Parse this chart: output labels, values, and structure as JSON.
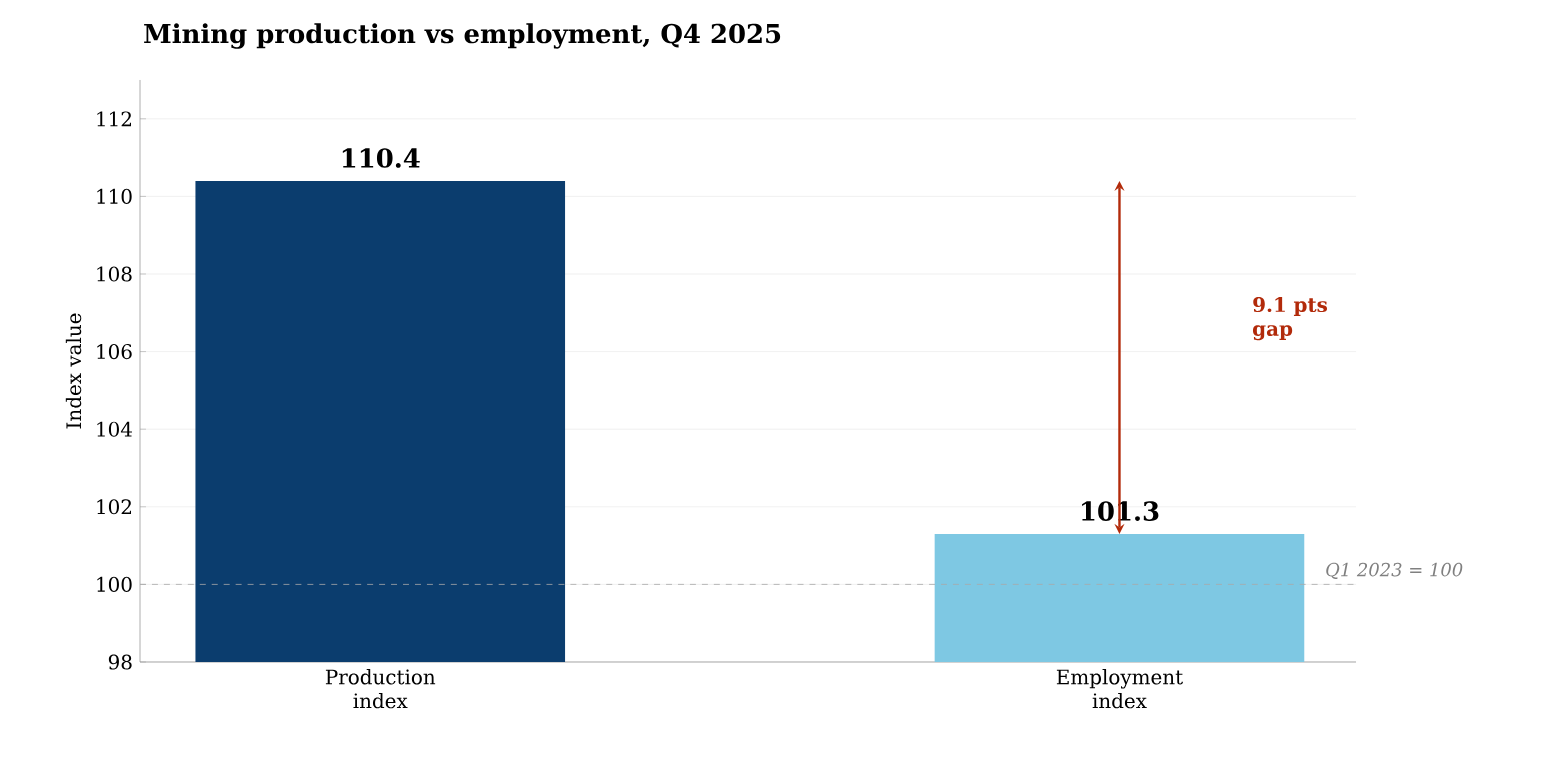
{
  "chart_data": {
    "type": "bar",
    "title": "Mining production vs employment, Q4 2025",
    "ylabel": "Index value",
    "categories": [
      "Production index",
      "Employment index"
    ],
    "values": [
      110.4,
      101.3
    ],
    "colors": [
      "#0b3d6e",
      "#7ec8e3"
    ],
    "ylim": [
      98,
      113
    ],
    "yticks": [
      98,
      100,
      102,
      104,
      106,
      108,
      110,
      112
    ],
    "grid": "y",
    "data_labels": true,
    "ref_lines": [
      {
        "axis": "y",
        "value": 100,
        "label": "Q1 2023 = 100",
        "color": "#aaaaaa",
        "line_style": "dashed"
      }
    ],
    "annotations": [
      "9.1 pts gap"
    ]
  }
}
